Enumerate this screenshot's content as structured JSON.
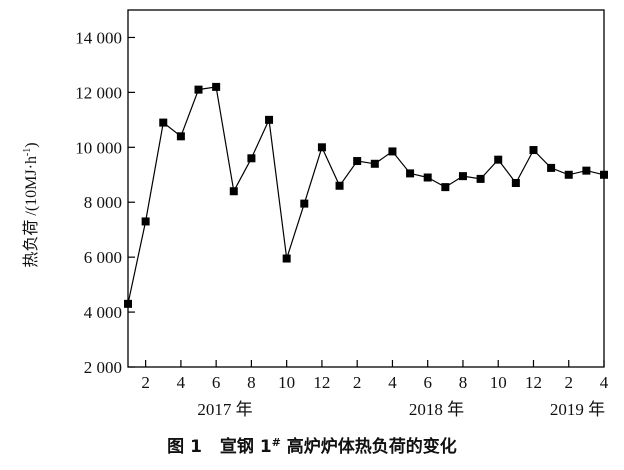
{
  "chart_data": {
    "type": "line",
    "ylabel": "热负荷 /(10MJ·h",
    "ylabel_sup": "-1",
    "ylabel_end": ")",
    "ylim": [
      2000,
      15000
    ],
    "yticks": [
      2000,
      4000,
      6000,
      8000,
      10000,
      12000,
      14000
    ],
    "ytick_labels": [
      "2 000",
      "4 000",
      "6 000",
      "8 000",
      "10 000",
      "12 000",
      "14 000"
    ],
    "xlim": [
      1,
      28
    ],
    "xticks": [
      2,
      4,
      6,
      8,
      10,
      12,
      14,
      16,
      18,
      20,
      22,
      24,
      26,
      28
    ],
    "xtick_labels": [
      "2",
      "4",
      "6",
      "8",
      "10",
      "12",
      "2",
      "4",
      "6",
      "8",
      "10",
      "12",
      "2",
      "4"
    ],
    "year_labels": [
      {
        "text": "2017 年",
        "x": 6.5
      },
      {
        "text": "2018 年",
        "x": 18.5
      },
      {
        "text": "2019 年",
        "x": 26.5
      }
    ],
    "grid": false,
    "marker": "square",
    "line_color": "#000000",
    "series": [
      {
        "x": [
          1,
          2,
          3,
          4,
          5,
          6,
          7,
          8,
          9,
          10,
          11,
          12,
          13,
          14,
          15,
          16,
          17,
          18,
          19,
          20,
          21,
          22,
          23,
          24,
          25,
          26,
          27,
          28
        ],
        "values": [
          4300,
          7300,
          10900,
          10400,
          12100,
          12200,
          8400,
          9600,
          11000,
          5950,
          7950,
          10000,
          8600,
          9500,
          9400,
          9850,
          9050,
          8900,
          8550,
          8950,
          8850,
          9550,
          8700,
          9900,
          9250,
          9000,
          9150,
          9000
        ]
      }
    ]
  },
  "caption": {
    "prefix": "图 1",
    "title_a": "宣钢 1",
    "title_sup": "#",
    "title_b": " 高炉炉体热负荷的变化"
  }
}
